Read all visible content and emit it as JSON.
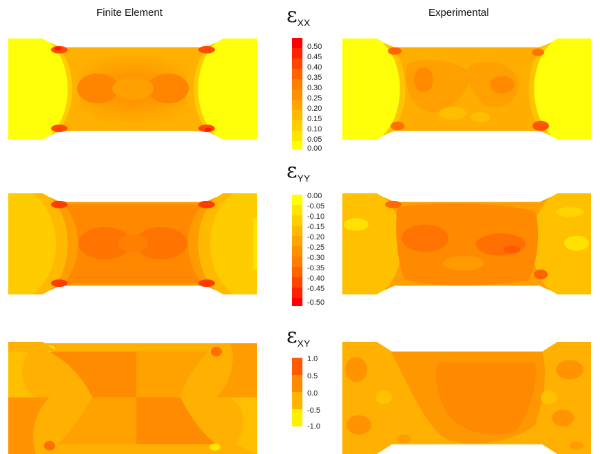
{
  "columns": {
    "left_title": "Finite Element",
    "right_title": "Experimental"
  },
  "colors": {
    "yellow": "#ffff0a",
    "ramp": [
      "#fff200",
      "#ffdf00",
      "#ffcc00",
      "#ffba00",
      "#ffa500",
      "#ff9100",
      "#ff7d00",
      "#ff6900",
      "#ff4f00",
      "#ff2800",
      "#ff0000"
    ]
  },
  "strains": [
    {
      "id": "xx",
      "symbol": "ε",
      "subscript": "XX",
      "scale_ticks": [
        "0.50",
        "0.45",
        "0.40",
        "0.35",
        "0.30",
        "0.25",
        "0.20",
        "0.15",
        "0.10",
        "0.05",
        "0.00"
      ]
    },
    {
      "id": "yy",
      "symbol": "ε",
      "subscript": "YY",
      "scale_ticks": [
        "0.00",
        "-0.05",
        "-0.10",
        "-0.15",
        "-0.20",
        "-0.25",
        "-0.30",
        "-0.35",
        "-0.40",
        "-0.45",
        "-0.50"
      ]
    },
    {
      "id": "xy",
      "symbol": "ε",
      "subscript": "XY",
      "scale_ticks": [
        "1.0",
        "0.5",
        "0.0",
        "-0.5",
        "-1.0"
      ]
    }
  ]
}
